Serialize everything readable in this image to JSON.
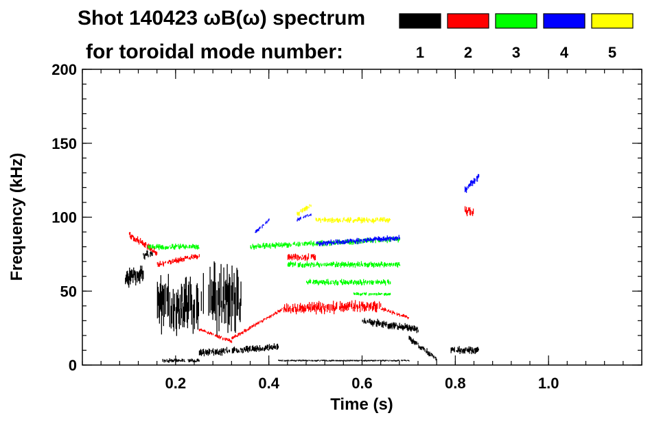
{
  "chart_data": {
    "type": "scatter",
    "title_line1": "Shot 140423 ωB(ω) spectrum",
    "title_line2": "for toroidal mode number:",
    "xlabel": "Time (s)",
    "ylabel": "Frequency (kHz)",
    "xlim": [
      0.0,
      1.2
    ],
    "ylim": [
      0,
      200
    ],
    "xticks": [
      {
        "value": 0.2,
        "label": "0.2"
      },
      {
        "value": 0.4,
        "label": "0.4"
      },
      {
        "value": 0.6,
        "label": "0.6"
      },
      {
        "value": 0.8,
        "label": "0.8"
      },
      {
        "value": 1.0,
        "label": "1.0"
      }
    ],
    "yticks": [
      {
        "value": 0,
        "label": "0"
      },
      {
        "value": 50,
        "label": "50"
      },
      {
        "value": 100,
        "label": "100"
      },
      {
        "value": 150,
        "label": "150"
      },
      {
        "value": 200,
        "label": "200"
      }
    ],
    "x_minor_step": 0.04,
    "y_minor_step": 10,
    "legend_position": "top-right",
    "series": [
      {
        "name": "1",
        "color": "#000000",
        "segments": [
          {
            "start": 0.09,
            "end": 0.13,
            "f_start": 58,
            "f_end": 62,
            "spread": 10
          },
          {
            "start": 0.13,
            "end": 0.15,
            "f_start": 74,
            "f_end": 76,
            "spread": 4
          },
          {
            "start": 0.17,
            "end": 0.25,
            "f_start": 3,
            "f_end": 3,
            "spread": 2
          },
          {
            "start": 0.25,
            "end": 0.42,
            "f_start": 8,
            "f_end": 12,
            "spread": 4
          },
          {
            "start": 0.27,
            "end": 0.34,
            "f_start": 45,
            "f_end": 45,
            "spread": 35
          },
          {
            "start": 0.16,
            "end": 0.26,
            "f_start": 40,
            "f_end": 40,
            "spread": 30
          },
          {
            "start": 0.42,
            "end": 0.7,
            "f_start": 3,
            "f_end": 3,
            "spread": 1
          },
          {
            "start": 0.6,
            "end": 0.72,
            "f_start": 30,
            "f_end": 24,
            "spread": 4
          },
          {
            "start": 0.7,
            "end": 0.76,
            "f_start": 18,
            "f_end": 4,
            "spread": 3
          },
          {
            "start": 0.79,
            "end": 0.85,
            "f_start": 10,
            "f_end": 10,
            "spread": 4
          }
        ]
      },
      {
        "name": "2",
        "color": "#ff0000",
        "segments": [
          {
            "start": 0.1,
            "end": 0.16,
            "f_start": 88,
            "f_end": 76,
            "spread": 4
          },
          {
            "start": 0.16,
            "end": 0.25,
            "f_start": 68,
            "f_end": 74,
            "spread": 3
          },
          {
            "start": 0.25,
            "end": 0.32,
            "f_start": 24,
            "f_end": 16,
            "spread": 2
          },
          {
            "start": 0.32,
            "end": 0.43,
            "f_start": 18,
            "f_end": 38,
            "spread": 2
          },
          {
            "start": 0.43,
            "end": 0.64,
            "f_start": 38,
            "f_end": 40,
            "spread": 6
          },
          {
            "start": 0.64,
            "end": 0.7,
            "f_start": 38,
            "f_end": 32,
            "spread": 2
          },
          {
            "start": 0.44,
            "end": 0.5,
            "f_start": 73,
            "f_end": 73,
            "spread": 4
          },
          {
            "start": 0.82,
            "end": 0.84,
            "f_start": 104,
            "f_end": 104,
            "spread": 6
          }
        ]
      },
      {
        "name": "3",
        "color": "#00ff00",
        "segments": [
          {
            "start": 0.14,
            "end": 0.25,
            "f_start": 80,
            "f_end": 80,
            "spread": 3
          },
          {
            "start": 0.36,
            "end": 0.68,
            "f_start": 80,
            "f_end": 85,
            "spread": 3
          },
          {
            "start": 0.44,
            "end": 0.68,
            "f_start": 68,
            "f_end": 68,
            "spread": 3
          },
          {
            "start": 0.48,
            "end": 0.66,
            "f_start": 56,
            "f_end": 56,
            "spread": 3
          },
          {
            "start": 0.58,
            "end": 0.66,
            "f_start": 48,
            "f_end": 48,
            "spread": 2
          }
        ]
      },
      {
        "name": "4",
        "color": "#0000ff",
        "segments": [
          {
            "start": 0.37,
            "end": 0.4,
            "f_start": 90,
            "f_end": 98,
            "spread": 2
          },
          {
            "start": 0.46,
            "end": 0.49,
            "f_start": 98,
            "f_end": 102,
            "spread": 2
          },
          {
            "start": 0.5,
            "end": 0.68,
            "f_start": 82,
            "f_end": 86,
            "spread": 3
          },
          {
            "start": 0.82,
            "end": 0.85,
            "f_start": 118,
            "f_end": 128,
            "spread": 4
          }
        ]
      },
      {
        "name": "5",
        "color": "#ffff00",
        "segments": [
          {
            "start": 0.46,
            "end": 0.49,
            "f_start": 102,
            "f_end": 108,
            "spread": 3
          },
          {
            "start": 0.5,
            "end": 0.66,
            "f_start": 98,
            "f_end": 98,
            "spread": 3
          }
        ]
      }
    ]
  }
}
